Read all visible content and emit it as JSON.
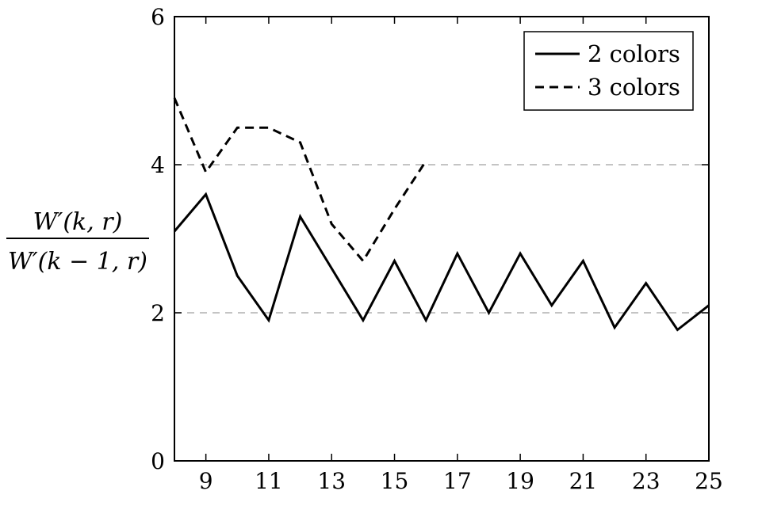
{
  "chart_data": {
    "type": "line",
    "xlim": [
      8,
      25
    ],
    "ylim": [
      0,
      6
    ],
    "xticks": [
      9,
      11,
      13,
      15,
      17,
      19,
      21,
      23,
      25
    ],
    "yticks": [
      0,
      2,
      4,
      6
    ],
    "xtick_labels": [
      "9",
      "11",
      "13",
      "15",
      "17",
      "19",
      "21",
      "23",
      "25"
    ],
    "ytick_labels": [
      "0",
      "2",
      "4",
      "6"
    ],
    "ylabel_numerator": "W′(k, r)",
    "ylabel_denominator": "W′(k − 1, r)",
    "xlabel": "",
    "title": "",
    "grid": "horizontal dashed at y=2 and y=4",
    "legend_position": "top-right",
    "series": [
      {
        "name": "2 colors",
        "style": "solid",
        "color": "#000000",
        "x": [
          8,
          9,
          10,
          11,
          12,
          13,
          14,
          15,
          16,
          17,
          18,
          19,
          20,
          21,
          22,
          23,
          24,
          25
        ],
        "y": [
          3.1,
          3.6,
          2.5,
          1.9,
          3.3,
          2.6,
          1.9,
          2.7,
          1.9,
          2.8,
          2.0,
          2.8,
          2.1,
          2.7,
          1.8,
          2.4,
          1.77,
          2.1
        ]
      },
      {
        "name": "3 colors",
        "style": "dashed",
        "color": "#000000",
        "x": [
          8,
          9,
          10,
          11,
          12,
          13,
          14,
          15,
          16
        ],
        "y": [
          4.9,
          3.9,
          4.5,
          4.5,
          4.3,
          3.2,
          2.7,
          3.4,
          4.05
        ]
      }
    ]
  }
}
